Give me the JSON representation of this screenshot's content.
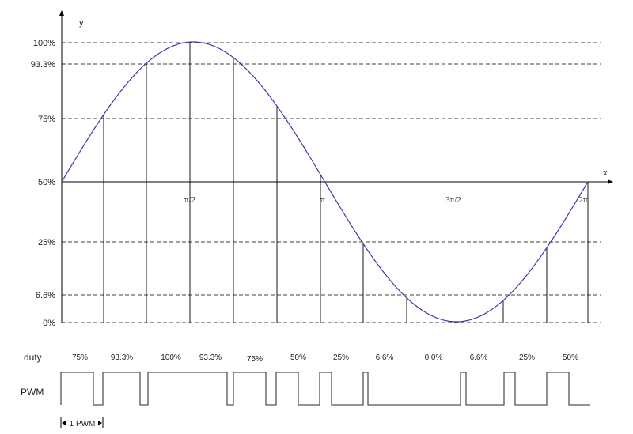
{
  "axes": {
    "x_label": "x",
    "y_label": "y"
  },
  "y_levels": [
    "100%",
    "93.3%",
    "75%",
    "50%",
    "25%",
    "6.6%",
    "0%"
  ],
  "x_ticks": [
    "π/2",
    "π",
    "3π/2",
    "2π"
  ],
  "row_labels": {
    "duty": "duty",
    "pwm": "PWM"
  },
  "duty_values": [
    "75%",
    "93.3%",
    "100%",
    "93.3%",
    "75%",
    "50%",
    "25%",
    "6.6%",
    "0.0%",
    "6.6%",
    "25%",
    "50%"
  ],
  "period_marker": "1 PWM",
  "colors": {
    "sine": "#3a3aa8",
    "lines": "#000000",
    "pwm": "#555555"
  }
}
